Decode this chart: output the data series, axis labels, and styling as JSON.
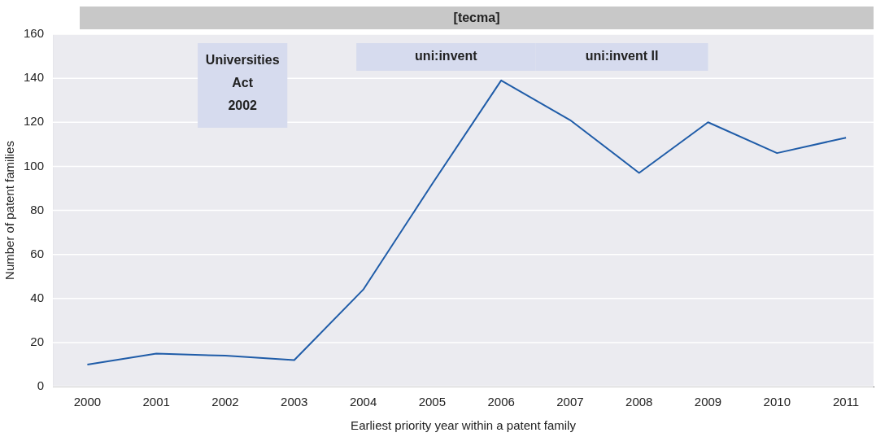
{
  "chart_data": {
    "type": "line",
    "title": "[tecma]",
    "xlabel": "Earliest priority year within a patent family",
    "ylabel": "Number of patent families",
    "x": [
      2000,
      2001,
      2002,
      2003,
      2004,
      2005,
      2006,
      2007,
      2008,
      2009,
      2010,
      2011
    ],
    "series": [
      {
        "color": "#1f5ca8",
        "values": [
          10,
          15,
          14,
          12,
          44,
          92,
          139,
          121,
          97,
          120,
          106,
          113
        ]
      }
    ],
    "xlim": [
      1999.5,
      2011.4
    ],
    "xticks": [
      2000,
      2001,
      2002,
      2003,
      2004,
      2005,
      2006,
      2007,
      2008,
      2009,
      2010,
      2011
    ],
    "ylim": [
      0,
      160
    ],
    "yticks": [
      0,
      20,
      40,
      60,
      80,
      100,
      120,
      140,
      160
    ],
    "grid": "y",
    "marker": "none",
    "line_style": "solid",
    "bands": [
      {
        "axis": "x",
        "from": 2001.6,
        "to": 2002.9,
        "label": "Universities Act 2002",
        "color": "#d6dbee"
      },
      {
        "axis": "x",
        "from": 2003.9,
        "to": 2006.5,
        "label": "uni:invent",
        "color": "#d6dbee"
      },
      {
        "axis": "x",
        "from": 2006.5,
        "to": 2009,
        "label": "uni:invent II",
        "color": "#d6dbee"
      }
    ]
  }
}
